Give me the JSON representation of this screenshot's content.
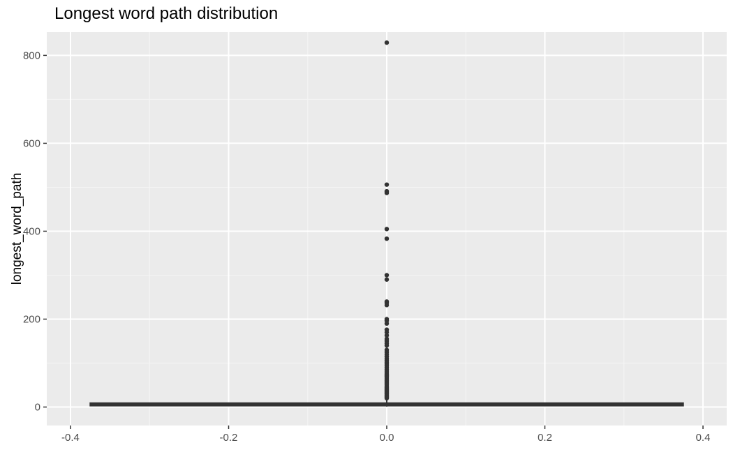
{
  "chart_data": {
    "type": "box",
    "title": "Longest word path distribution",
    "xlabel": "",
    "ylabel": "longest_word_path",
    "xlim": [
      -0.43,
      0.43
    ],
    "ylim": [
      -42,
      853
    ],
    "x_ticks": [
      -0.4,
      -0.2,
      0.0,
      0.2,
      0.4
    ],
    "x_tick_labels": [
      "-0.4",
      "-0.2",
      "0.0",
      "0.2",
      "0.4"
    ],
    "y_ticks": [
      0,
      200,
      400,
      600,
      800
    ],
    "y_tick_labels": [
      "0",
      "200",
      "400",
      "600",
      "800"
    ],
    "grid": true,
    "legend": "none",
    "colors": {
      "panel_bg": "#ebebeb",
      "grid_major": "#ffffff",
      "grid_minor": "#f5f5f5",
      "box_fill": "#ffffff",
      "box_outline": "#333333",
      "outlier": "#333333",
      "tick_text": "#4d4d4d"
    },
    "box": {
      "x": 0.0,
      "width": 0.75,
      "q1": 3,
      "median": 6,
      "q3": 9,
      "whisker_low": 1,
      "whisker_high": 18
    },
    "outliers": [
      829,
      506,
      491,
      487,
      405,
      383,
      300,
      290,
      240,
      237,
      232,
      200,
      196,
      190,
      176,
      170,
      163,
      155,
      150,
      145,
      140,
      130,
      125,
      120,
      115,
      110,
      106,
      102,
      98,
      94,
      90,
      86,
      82,
      78,
      75,
      72,
      69,
      66,
      63,
      60,
      57,
      54,
      51,
      48,
      45,
      42,
      40,
      38,
      36,
      34,
      32,
      30,
      28,
      26,
      24,
      22,
      20
    ]
  }
}
